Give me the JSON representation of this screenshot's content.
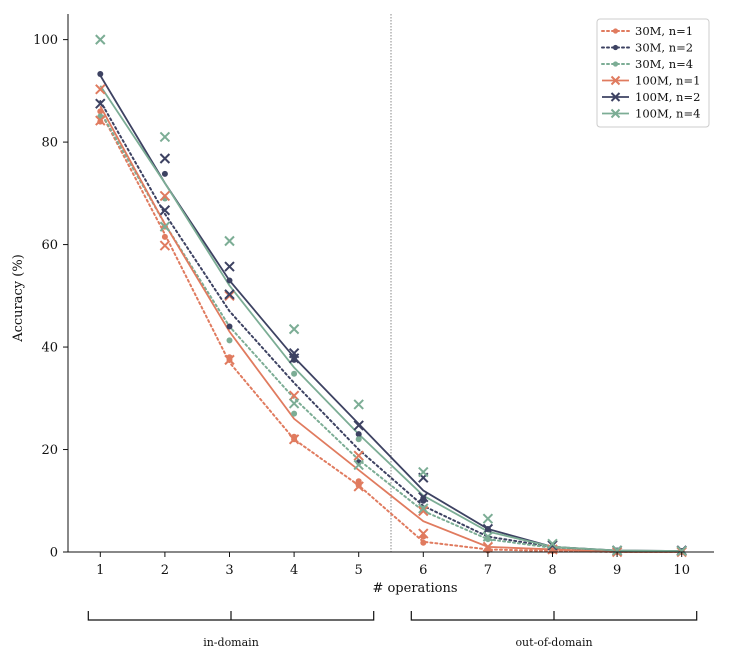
{
  "chart_data": {
    "type": "line",
    "xlabel": "# operations",
    "ylabel": "Accuracy (%)",
    "x": [
      1,
      2,
      3,
      4,
      5,
      6,
      7,
      8,
      9,
      10
    ],
    "x_tick_labels": [
      "1",
      "2",
      "3",
      "4",
      "5",
      "6",
      "7",
      "8",
      "9",
      "10"
    ],
    "xlim": [
      0.5,
      10.5
    ],
    "ylim": [
      0,
      105
    ],
    "y_ticks": [
      0,
      20,
      40,
      60,
      80,
      100
    ],
    "y_tick_labels": [
      "0",
      "20",
      "40",
      "60",
      "80",
      "100"
    ],
    "grid": false,
    "legend_position": "top-right",
    "domain_split_x": 5.5,
    "domain_groups": [
      {
        "label": "in-domain",
        "from": 1,
        "to": 5
      },
      {
        "label": "out-of-domain",
        "from": 6,
        "to": 10
      }
    ],
    "series": [
      {
        "name": "30M, n=1",
        "color": "#e07b5f",
        "line_style": "dotted",
        "marker": "circle",
        "values": [
          86,
          62,
          37,
          22,
          13,
          2,
          0.5,
          0.2,
          0,
          0
        ],
        "raw_points": [
          {
            "x": 1,
            "y": [
              84,
              86
            ]
          },
          {
            "x": 2,
            "y": [
              61.5,
              63.5
            ]
          },
          {
            "x": 3,
            "y": [
              37.5,
              38
            ]
          },
          {
            "x": 4,
            "y": [
              22,
              22.5
            ]
          },
          {
            "x": 5,
            "y": [
              13,
              13.8
            ]
          },
          {
            "x": 6,
            "y": [
              1.8,
              3
            ]
          },
          {
            "x": 7,
            "y": [
              0.3,
              0.6
            ]
          },
          {
            "x": 8,
            "y": [
              0.2
            ]
          },
          {
            "x": 9,
            "y": [
              0
            ]
          },
          {
            "x": 10,
            "y": [
              0
            ]
          }
        ]
      },
      {
        "name": "30M, n=2",
        "color": "#3d4262",
        "line_style": "dotted",
        "marker": "circle",
        "values": [
          88,
          66,
          47,
          33,
          20,
          9,
          3,
          1,
          0.2,
          0.1
        ],
        "raw_points": [
          {
            "x": 1,
            "y": [
              93.3
            ]
          },
          {
            "x": 2,
            "y": [
              73.8
            ]
          },
          {
            "x": 3,
            "y": [
              44,
              53
            ]
          },
          {
            "x": 4,
            "y": [
              37.5,
              38
            ]
          },
          {
            "x": 5,
            "y": [
              17.5,
              23
            ]
          },
          {
            "x": 6,
            "y": [
              10,
              10.5
            ]
          },
          {
            "x": 7,
            "y": [
              4.5
            ]
          },
          {
            "x": 8,
            "y": [
              1
            ]
          },
          {
            "x": 9,
            "y": [
              0.3
            ]
          },
          {
            "x": 10,
            "y": [
              0.2
            ]
          }
        ]
      },
      {
        "name": "30M, n=4",
        "color": "#7cad95",
        "line_style": "dotted",
        "marker": "circle",
        "values": [
          86,
          64,
          44,
          30,
          18,
          8,
          2.5,
          0.8,
          0.2,
          0.1
        ],
        "raw_points": [
          {
            "x": 1,
            "y": [
              85
            ]
          },
          {
            "x": 2,
            "y": [
              69
            ]
          },
          {
            "x": 3,
            "y": [
              41.3
            ]
          },
          {
            "x": 4,
            "y": [
              27,
              34.8
            ]
          },
          {
            "x": 5,
            "y": [
              22
            ]
          },
          {
            "x": 6,
            "y": [
              8.5
            ]
          },
          {
            "x": 7,
            "y": [
              2.5
            ]
          },
          {
            "x": 8,
            "y": [
              0.8
            ]
          },
          {
            "x": 9,
            "y": [
              0.2
            ]
          },
          {
            "x": 10,
            "y": [
              0.1
            ]
          }
        ]
      },
      {
        "name": "100M, n=1",
        "color": "#e07b5f",
        "line_style": "solid",
        "marker": "x",
        "values": [
          87,
          64,
          43,
          26,
          16,
          6,
          1,
          0.5,
          0,
          0
        ],
        "raw_points": [
          {
            "x": 1,
            "y": [
              84.2,
              90.3
            ]
          },
          {
            "x": 2,
            "y": [
              59.8,
              69.5
            ]
          },
          {
            "x": 3,
            "y": [
              37.5,
              50
            ]
          },
          {
            "x": 4,
            "y": [
              22,
              30.5
            ]
          },
          {
            "x": 5,
            "y": [
              12.8,
              18.8
            ]
          },
          {
            "x": 6,
            "y": [
              3.6,
              8
            ]
          },
          {
            "x": 7,
            "y": [
              1
            ]
          },
          {
            "x": 8,
            "y": [
              0.5
            ]
          },
          {
            "x": 9,
            "y": [
              0
            ]
          },
          {
            "x": 10,
            "y": [
              0
            ]
          }
        ]
      },
      {
        "name": "100M, n=2",
        "color": "#3d4262",
        "line_style": "solid",
        "marker": "x",
        "values": [
          93,
          72,
          53,
          38,
          25,
          12,
          4.5,
          1,
          0.3,
          0.2
        ],
        "raw_points": [
          {
            "x": 1,
            "y": [
              87.5
            ]
          },
          {
            "x": 2,
            "y": [
              66.7,
              76.8
            ]
          },
          {
            "x": 3,
            "y": [
              50.3,
              55.7
            ]
          },
          {
            "x": 4,
            "y": [
              37.8,
              38.8
            ]
          },
          {
            "x": 5,
            "y": [
              24.7
            ]
          },
          {
            "x": 6,
            "y": [
              10.7,
              14.5
            ]
          },
          {
            "x": 7,
            "y": [
              4.5
            ]
          },
          {
            "x": 8,
            "y": [
              1.3
            ]
          },
          {
            "x": 9,
            "y": [
              0.3
            ]
          },
          {
            "x": 10,
            "y": [
              0.3
            ]
          }
        ]
      },
      {
        "name": "100M, n=4",
        "color": "#7cad95",
        "line_style": "solid",
        "marker": "x",
        "values": [
          91,
          72,
          52,
          36,
          23,
          11,
          4,
          1,
          0.3,
          0.2
        ],
        "raw_points": [
          {
            "x": 1,
            "y": [
              100
            ]
          },
          {
            "x": 2,
            "y": [
              63.5,
              81
            ]
          },
          {
            "x": 3,
            "y": [
              60.7
            ]
          },
          {
            "x": 4,
            "y": [
              29,
              43.5
            ]
          },
          {
            "x": 5,
            "y": [
              17,
              28.8
            ]
          },
          {
            "x": 6,
            "y": [
              8.5,
              15.6
            ]
          },
          {
            "x": 7,
            "y": [
              3,
              6.5
            ]
          },
          {
            "x": 8,
            "y": [
              1.6
            ]
          },
          {
            "x": 9,
            "y": [
              0.3
            ]
          },
          {
            "x": 10,
            "y": [
              0.2
            ]
          }
        ]
      }
    ]
  }
}
